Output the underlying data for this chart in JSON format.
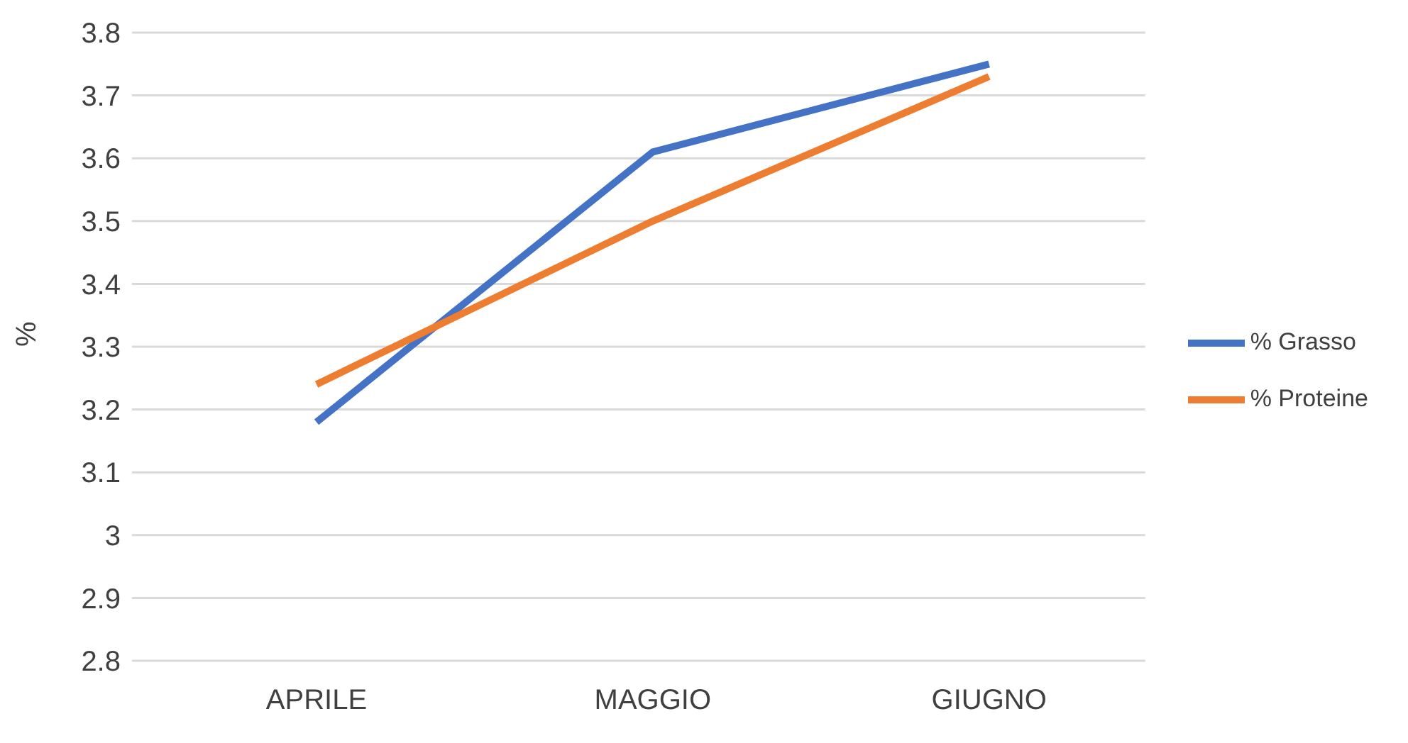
{
  "chart_data": {
    "type": "line",
    "ylabel": "%",
    "categories": [
      "APRILE",
      "MAGGIO",
      "GIUGNO"
    ],
    "series": [
      {
        "name": "% Grasso",
        "color": "#4472c4",
        "values": [
          3.18,
          3.61,
          3.75
        ]
      },
      {
        "name": "% Proteine",
        "color": "#ed7d31",
        "values": [
          3.24,
          3.5,
          3.73
        ]
      }
    ],
    "ylim": [
      2.8,
      3.8
    ],
    "yticks": [
      2.8,
      2.9,
      3,
      3.1,
      3.2,
      3.3,
      3.4,
      3.5,
      3.6,
      3.7,
      3.8
    ],
    "grid": "y",
    "legend": "right",
    "marker": "none",
    "line_style": "solid"
  }
}
